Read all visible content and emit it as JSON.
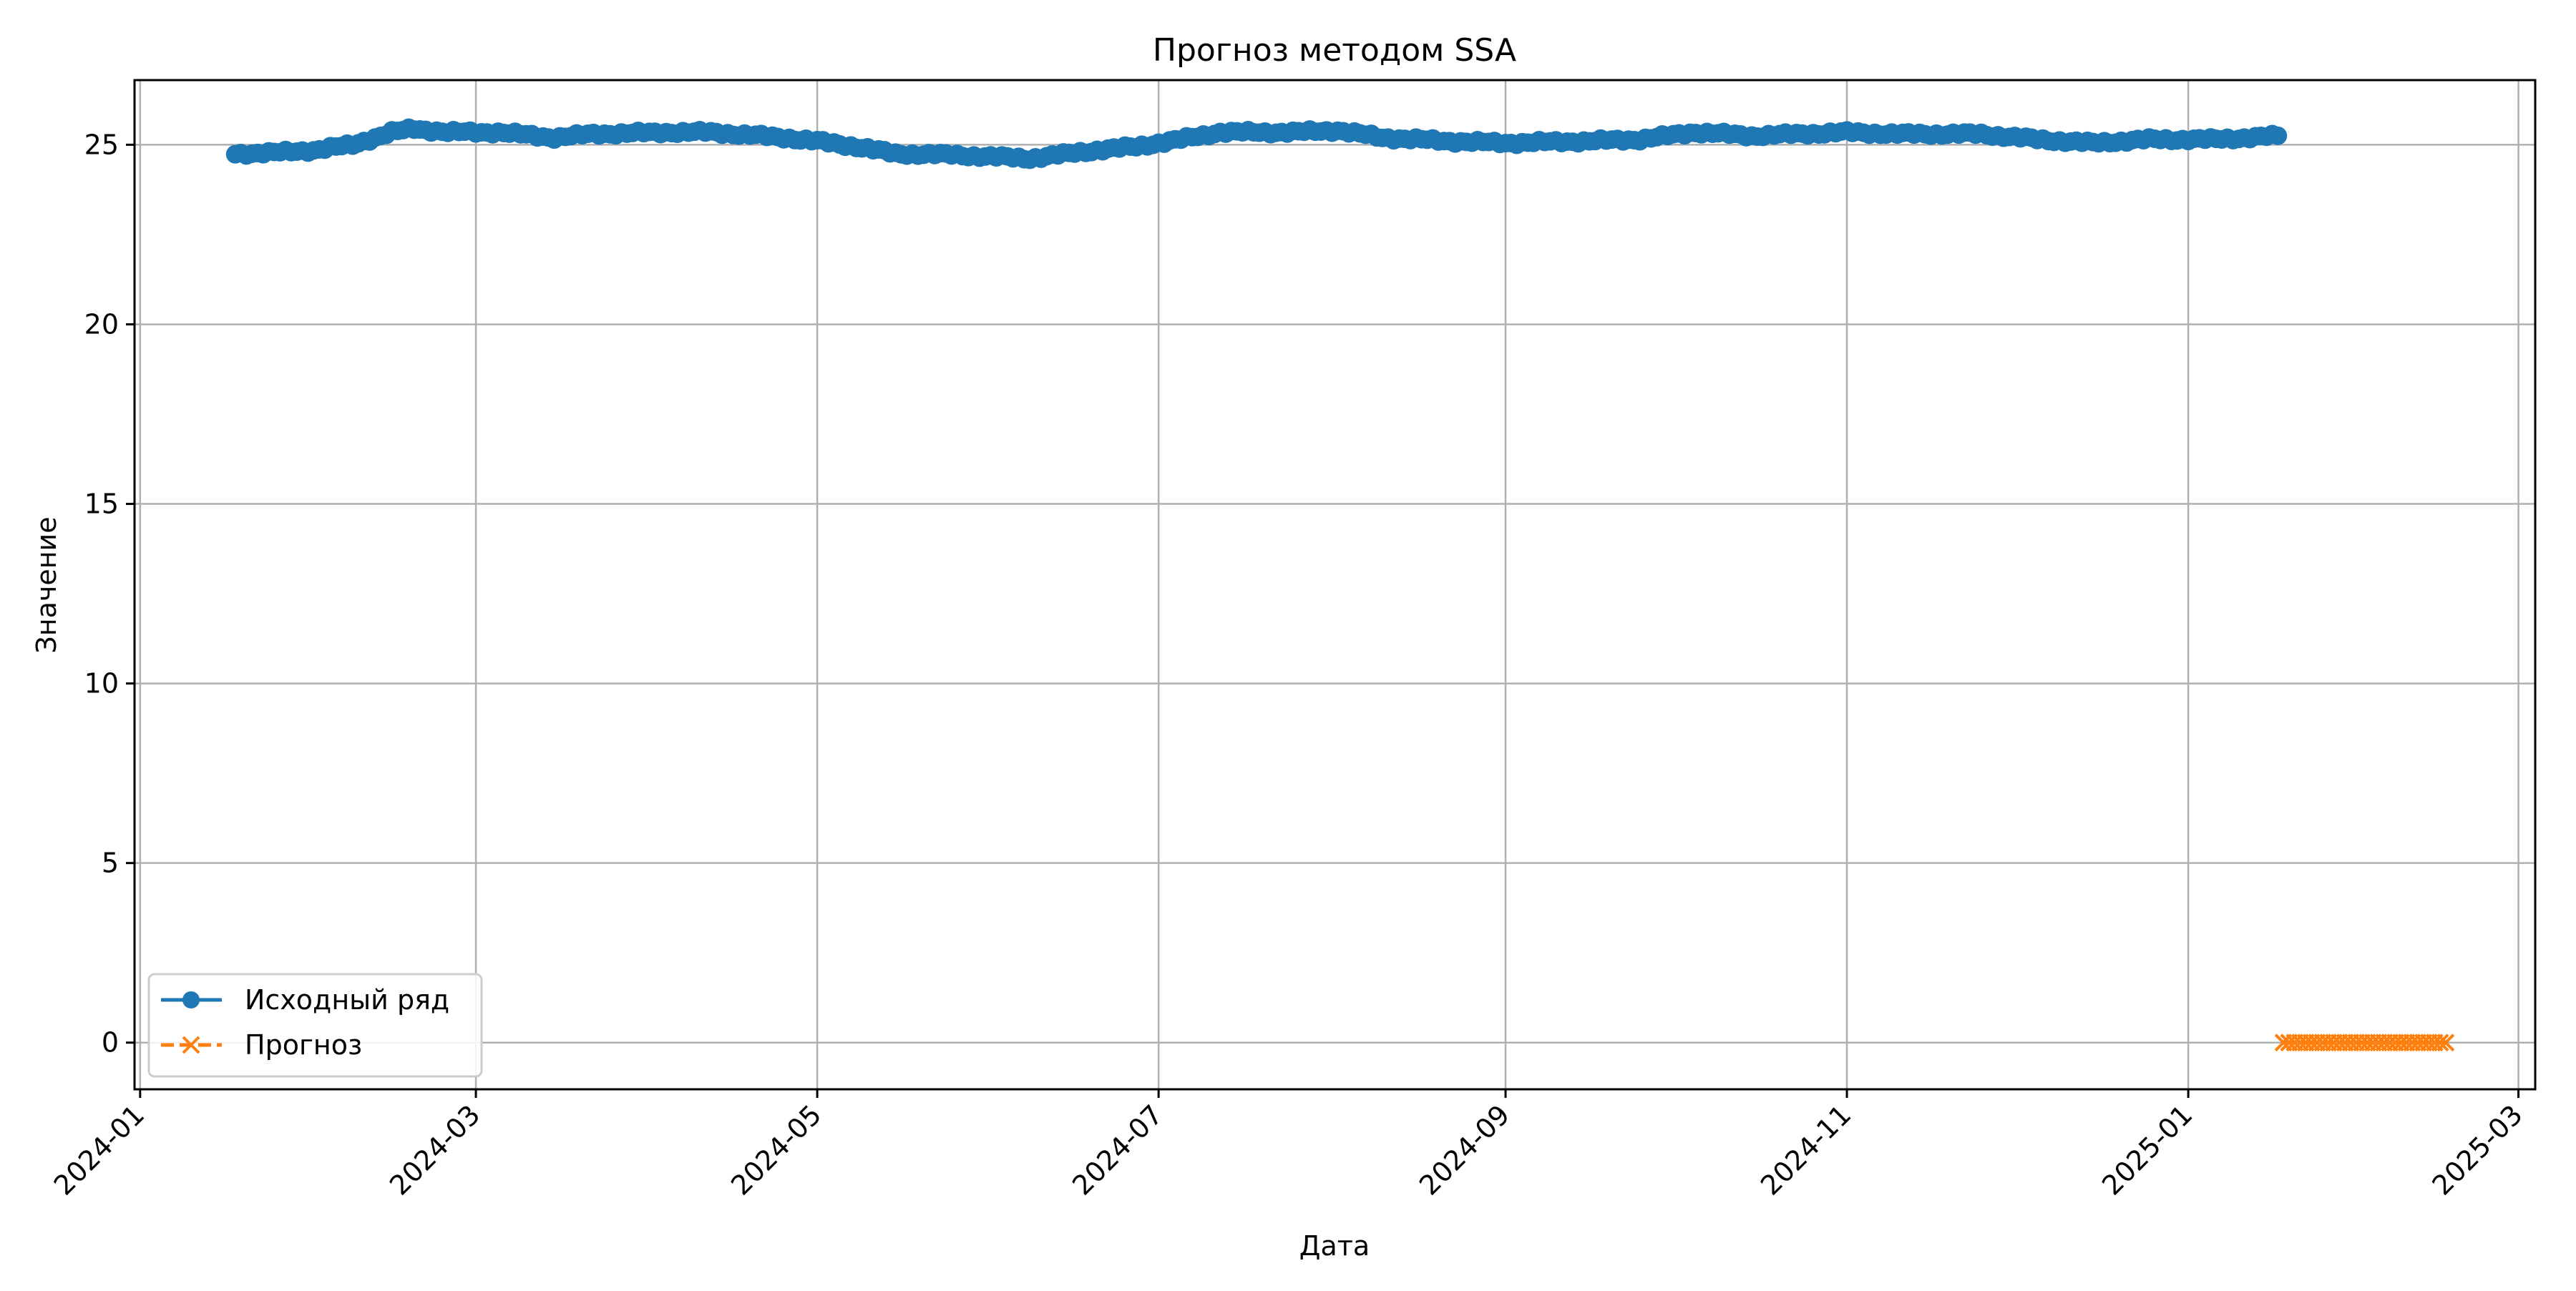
{
  "chart_data": {
    "type": "line",
    "title": "Прогноз методом SSA",
    "xlabel": "Дата",
    "ylabel": "Значение",
    "x_axis_type": "date",
    "xlim": [
      "2023-12-31",
      "2025-03-04"
    ],
    "ylim": [
      -1.3,
      26.8
    ],
    "x_ticks": [
      "2024-01",
      "2024-03",
      "2024-05",
      "2024-07",
      "2024-09",
      "2024-11",
      "2025-01",
      "2025-03"
    ],
    "y_ticks": [
      0,
      5,
      10,
      15,
      20,
      25
    ],
    "grid": true,
    "legend_position": "lower-left",
    "series": [
      {
        "name": "Исходный ряд",
        "color": "#1f77b4",
        "marker": "circle",
        "linestyle": "solid",
        "start_date": "2024-01-18",
        "end_date": "2025-01-17",
        "step": "daily",
        "anchors": [
          [
            "2024-01-18",
            24.75
          ],
          [
            "2024-01-25",
            24.78
          ],
          [
            "2024-02-01",
            24.85
          ],
          [
            "2024-02-08",
            25.0
          ],
          [
            "2024-02-15",
            25.35
          ],
          [
            "2024-02-19",
            25.45
          ],
          [
            "2024-02-25",
            25.35
          ],
          [
            "2024-03-05",
            25.35
          ],
          [
            "2024-03-15",
            25.2
          ],
          [
            "2024-03-22",
            25.3
          ],
          [
            "2024-04-05",
            25.35
          ],
          [
            "2024-04-12",
            25.35
          ],
          [
            "2024-04-25",
            25.2
          ],
          [
            "2024-05-01",
            25.1
          ],
          [
            "2024-05-08",
            24.95
          ],
          [
            "2024-05-15",
            24.75
          ],
          [
            "2024-05-25",
            24.72
          ],
          [
            "2024-06-08",
            24.62
          ],
          [
            "2024-06-20",
            24.85
          ],
          [
            "2024-06-27",
            24.95
          ],
          [
            "2024-07-05",
            25.15
          ],
          [
            "2024-07-12",
            25.35
          ],
          [
            "2024-07-25",
            25.35
          ],
          [
            "2024-08-02",
            25.4
          ],
          [
            "2024-08-10",
            25.2
          ],
          [
            "2024-08-22",
            25.1
          ],
          [
            "2024-09-01",
            25.05
          ],
          [
            "2024-09-15",
            25.1
          ],
          [
            "2024-09-25",
            25.15
          ],
          [
            "2024-10-05",
            25.35
          ],
          [
            "2024-10-15",
            25.25
          ],
          [
            "2024-11-01",
            25.35
          ],
          [
            "2024-11-10",
            25.3
          ],
          [
            "2024-11-25",
            25.3
          ],
          [
            "2024-12-05",
            25.15
          ],
          [
            "2024-12-15",
            25.05
          ],
          [
            "2024-12-25",
            25.15
          ],
          [
            "2025-01-05",
            25.15
          ],
          [
            "2025-01-12",
            25.2
          ],
          [
            "2025-01-17",
            25.25
          ]
        ]
      },
      {
        "name": "Прогноз",
        "color": "#ff7f0e",
        "marker": "x",
        "linestyle": "dashed",
        "start_date": "2025-01-18",
        "end_date": "2025-02-16",
        "step": "daily",
        "constant_value": 0
      }
    ]
  }
}
